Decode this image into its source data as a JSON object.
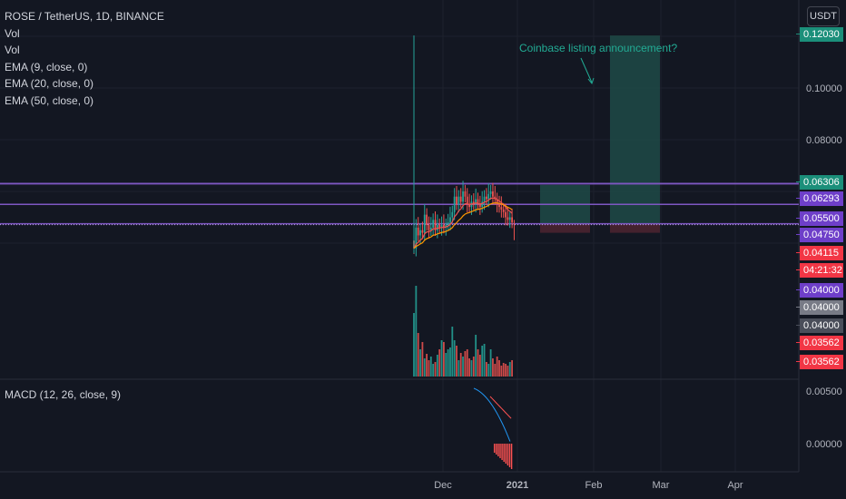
{
  "header": {
    "title": "ROSE / TetherUS, 1D, BINANCE",
    "indicators": [
      "Vol",
      "Vol",
      "EMA (9, close, 0)",
      "EMA (20, close, 0)",
      "EMA (50, close, 0)"
    ],
    "currency": "USDT"
  },
  "macd_label": "MACD (12, 26, close, 9)",
  "annotation": "Coinbase listing announcement?",
  "price_axis": {
    "ticks": [
      "0.10000",
      "0.08000"
    ],
    "macd_ticks": [
      "0.00500",
      "0.00000"
    ]
  },
  "time_axis": [
    "Dec",
    "2021",
    "Feb",
    "Mar",
    "Apr"
  ],
  "price_tags": [
    {
      "text": "0.12030",
      "color": "#1b8f7a"
    },
    {
      "text": "0.06306",
      "color": "#1b8f7a"
    },
    {
      "text": "0.06293",
      "color": "#6e3fc9"
    },
    {
      "text": "0.05500",
      "color": "#6e3fc9"
    },
    {
      "text": "0.04750",
      "color": "#6e3fc9"
    },
    {
      "text": "0.04115",
      "color": "#f23645"
    },
    {
      "text": "04:21:32",
      "color": "#f23645"
    },
    {
      "text": "0.04000",
      "color": "#6e3fc9"
    },
    {
      "text": "0.04000",
      "color": "#787b86"
    },
    {
      "text": "0.04000",
      "color": "#4a4e5a"
    },
    {
      "text": "0.03562",
      "color": "#f23645"
    },
    {
      "text": "0.03562",
      "color": "#f23645"
    }
  ],
  "colors": {
    "up": "#26a69a",
    "down": "#ef5350",
    "level": "#7e57c2",
    "target_zone": "#1e4a46",
    "stop_zone": "#4a2430",
    "macd": "#2196f3",
    "signal": "#ff5252"
  },
  "chart_data": {
    "type": "candlestick",
    "title": "ROSE / TetherUS, 1D, BINANCE",
    "timeframe": "1D",
    "y_range_main": [
      0.035,
      0.125
    ],
    "horizontal_levels": [
      0.06306,
      0.06293,
      0.055,
      0.0475,
      0.04715
    ],
    "last_price": 0.04115,
    "peak_wick_high": 0.1203,
    "x_ticks": [
      "Dec",
      "2021",
      "Feb",
      "Mar",
      "Apr"
    ],
    "close_sequence": [
      0.038,
      0.046,
      0.043,
      0.045,
      0.044,
      0.051,
      0.047,
      0.045,
      0.046,
      0.049,
      0.045,
      0.047,
      0.046,
      0.047,
      0.046,
      0.047,
      0.048,
      0.05,
      0.052,
      0.058,
      0.055,
      0.058,
      0.056,
      0.06,
      0.058,
      0.055,
      0.054,
      0.056,
      0.055,
      0.057,
      0.055,
      0.054,
      0.056,
      0.058,
      0.057,
      0.059,
      0.06,
      0.058,
      0.057,
      0.055,
      0.054,
      0.053,
      0.052,
      0.05,
      0.049,
      0.05,
      0.048
    ],
    "trade_zones": [
      {
        "name": "first",
        "target": 0.0625,
        "entry": 0.0475,
        "stop": 0.044
      },
      {
        "name": "second",
        "target": 0.1203,
        "entry": 0.0475,
        "stop": 0.044
      }
    ],
    "macd_ticks": [
      0.005,
      0.0
    ]
  }
}
